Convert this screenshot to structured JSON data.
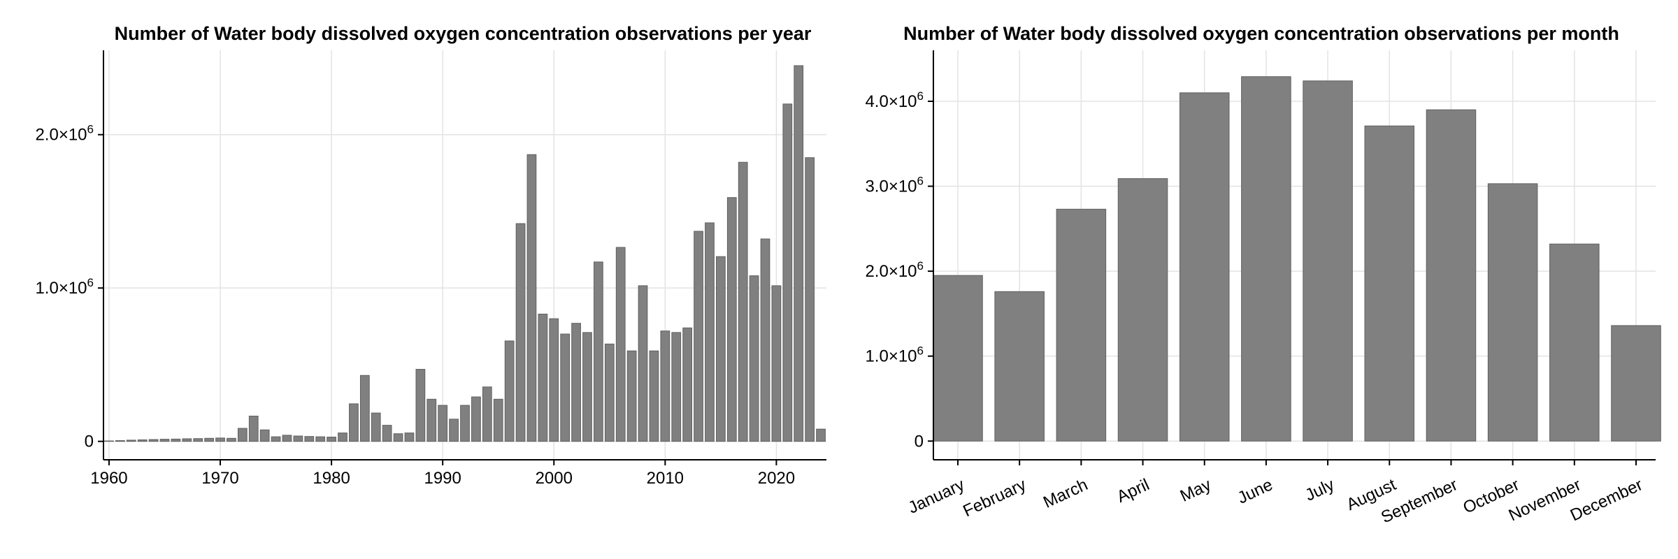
{
  "chart_data": [
    {
      "type": "bar",
      "title": "Number of Water body dissolved oxygen concentration observations per year",
      "xlabel": "",
      "ylabel": "",
      "xlim": [
        1959.5,
        2024.5
      ],
      "ylim": [
        -120000,
        2550000
      ],
      "x_ticks": [
        1960,
        1970,
        1980,
        1990,
        2000,
        2010,
        2020
      ],
      "y_ticks": [
        {
          "value": 0,
          "mantissa": "0",
          "exp": ""
        },
        {
          "value": 1000000,
          "mantissa": "1.0×10",
          "exp": "6"
        },
        {
          "value": 2000000,
          "mantissa": "2.0×10",
          "exp": "6"
        }
      ],
      "grid": true,
      "x": [
        1960,
        1961,
        1962,
        1963,
        1964,
        1965,
        1966,
        1967,
        1968,
        1969,
        1970,
        1971,
        1972,
        1973,
        1974,
        1975,
        1976,
        1977,
        1978,
        1979,
        1980,
        1981,
        1982,
        1983,
        1984,
        1985,
        1986,
        1987,
        1988,
        1989,
        1990,
        1991,
        1992,
        1993,
        1994,
        1995,
        1996,
        1997,
        1998,
        1999,
        2000,
        2001,
        2002,
        2003,
        2004,
        2005,
        2006,
        2007,
        2008,
        2009,
        2010,
        2011,
        2012,
        2013,
        2014,
        2015,
        2016,
        2017,
        2018,
        2019,
        2020,
        2021,
        2022,
        2023,
        2024
      ],
      "values": [
        3000,
        5000,
        8000,
        10000,
        12000,
        14000,
        15000,
        17000,
        18000,
        20000,
        22000,
        20000,
        85000,
        165000,
        75000,
        30000,
        40000,
        35000,
        32000,
        30000,
        28000,
        55000,
        245000,
        430000,
        185000,
        105000,
        50000,
        55000,
        470000,
        275000,
        235000,
        145000,
        235000,
        290000,
        355000,
        275000,
        655000,
        1420000,
        1870000,
        830000,
        800000,
        700000,
        770000,
        710000,
        1170000,
        635000,
        1265000,
        590000,
        1015000,
        590000,
        720000,
        710000,
        740000,
        1370000,
        1425000,
        1205000,
        1590000,
        1820000,
        1080000,
        1320000,
        1015000,
        2200000,
        2450000,
        1850000,
        80000
      ]
    },
    {
      "type": "bar",
      "title": "Number of Water body dissolved oxygen concentration observations per month",
      "xlabel": "",
      "ylabel": "",
      "categories": [
        "January",
        "February",
        "March",
        "April",
        "May",
        "June",
        "July",
        "August",
        "September",
        "October",
        "November",
        "December"
      ],
      "ylim": [
        -220000,
        4600000
      ],
      "y_ticks": [
        {
          "value": 0,
          "mantissa": "0",
          "exp": ""
        },
        {
          "value": 1000000,
          "mantissa": "1.0×10",
          "exp": "6"
        },
        {
          "value": 2000000,
          "mantissa": "2.0×10",
          "exp": "6"
        },
        {
          "value": 3000000,
          "mantissa": "3.0×10",
          "exp": "6"
        },
        {
          "value": 4000000,
          "mantissa": "4.0×10",
          "exp": "6"
        }
      ],
      "grid": true,
      "values": [
        1950000,
        1760000,
        2730000,
        3090000,
        4100000,
        4290000,
        4240000,
        3710000,
        3900000,
        3030000,
        2320000,
        1360000
      ]
    }
  ]
}
